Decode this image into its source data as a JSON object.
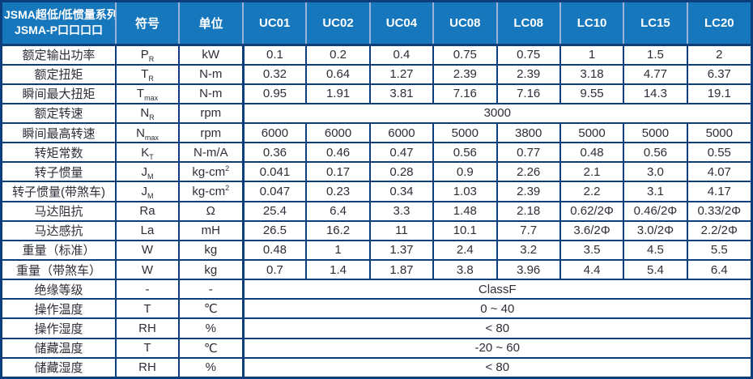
{
  "table": {
    "header": {
      "title_line1": "JSMA超低/低惯量系列",
      "title_line2": "JSMA-P口口口口",
      "symbol_col": "符号",
      "unit_col": "单位",
      "models": [
        "UC01",
        "UC02",
        "UC04",
        "UC08",
        "LC08",
        "LC10",
        "LC15",
        "LC20"
      ]
    },
    "rows": [
      {
        "label": "额定输出功率",
        "symbol": {
          "base": "P",
          "sub": "R"
        },
        "unit": {
          "base": "kW"
        },
        "values": [
          "0.1",
          "0.2",
          "0.4",
          "0.75",
          "0.75",
          "1",
          "1.5",
          "2"
        ]
      },
      {
        "label": "额定扭矩",
        "symbol": {
          "base": "T",
          "sub": "R"
        },
        "unit": {
          "base": "N-m"
        },
        "values": [
          "0.32",
          "0.64",
          "1.27",
          "2.39",
          "2.39",
          "3.18",
          "4.77",
          "6.37"
        ]
      },
      {
        "label": "瞬间最大扭矩",
        "symbol": {
          "base": "T",
          "sub": "max"
        },
        "unit": {
          "base": "N-m"
        },
        "values": [
          "0.95",
          "1.91",
          "3.81",
          "7.16",
          "7.16",
          "9.55",
          "14.3",
          "19.1"
        ]
      },
      {
        "label": "额定转速",
        "symbol": {
          "base": "N",
          "sub": "R"
        },
        "unit": {
          "base": "rpm"
        },
        "merged": "3000"
      },
      {
        "label": "瞬间最高转速",
        "symbol": {
          "base": "N",
          "sub": "max"
        },
        "unit": {
          "base": "rpm"
        },
        "values": [
          "6000",
          "6000",
          "6000",
          "5000",
          "3800",
          "5000",
          "5000",
          "5000"
        ]
      },
      {
        "label": "转矩常数",
        "symbol": {
          "base": "K",
          "sub": "T"
        },
        "unit": {
          "base": "N-m/A"
        },
        "values": [
          "0.36",
          "0.46",
          "0.47",
          "0.56",
          "0.77",
          "0.48",
          "0.56",
          "0.55"
        ]
      },
      {
        "label": "转子惯量",
        "symbol": {
          "base": "J",
          "sub": "M"
        },
        "unit": {
          "base": "kg-cm",
          "sup": "2"
        },
        "values": [
          "0.041",
          "0.17",
          "0.28",
          "0.9",
          "2.26",
          "2.1",
          "3.0",
          "4.07"
        ]
      },
      {
        "label": "转子惯量(带煞车)",
        "symbol": {
          "base": "J",
          "sub": "M"
        },
        "unit": {
          "base": "kg-cm",
          "sup": "2"
        },
        "values": [
          "0.047",
          "0.23",
          "0.34",
          "1.03",
          "2.39",
          "2.2",
          "3.1",
          "4.17"
        ]
      },
      {
        "label": "马达阻抗",
        "symbol": {
          "base": "Ra"
        },
        "unit": {
          "base": "Ω"
        },
        "values": [
          "25.4",
          "6.4",
          "3.3",
          "1.48",
          "2.18",
          "0.62/2Φ",
          "0.46/2Φ",
          "0.33/2Φ"
        ]
      },
      {
        "label": "马达感抗",
        "symbol": {
          "base": "La"
        },
        "unit": {
          "base": "mH"
        },
        "values": [
          "26.5",
          "16.2",
          "11",
          "10.1",
          "7.7",
          "3.6/2Φ",
          "3.0/2Φ",
          "2.2/2Φ"
        ]
      },
      {
        "label": "重量（标准）",
        "symbol": {
          "base": "W"
        },
        "unit": {
          "base": "kg"
        },
        "values": [
          "0.48",
          "1",
          "1.37",
          "2.4",
          "3.2",
          "3.5",
          "4.5",
          "5.5"
        ]
      },
      {
        "label": "重量（带煞车）",
        "symbol": {
          "base": "W"
        },
        "unit": {
          "base": "kg"
        },
        "values": [
          "0.7",
          "1.4",
          "1.87",
          "3.8",
          "3.96",
          "4.4",
          "5.4",
          "6.4"
        ]
      },
      {
        "label": "绝缘等级",
        "symbol": {
          "base": "-"
        },
        "unit": {
          "base": "-"
        },
        "merged": "ClassF"
      },
      {
        "label": "操作温度",
        "symbol": {
          "base": "T"
        },
        "unit": {
          "base": "℃"
        },
        "merged": "0 ~ 40"
      },
      {
        "label": "操作湿度",
        "symbol": {
          "base": "RH"
        },
        "unit": {
          "base": "%"
        },
        "merged": "< 80"
      },
      {
        "label": "储藏温度",
        "symbol": {
          "base": "T"
        },
        "unit": {
          "base": "℃"
        },
        "merged": "-20 ~ 60"
      },
      {
        "label": "储藏湿度",
        "symbol": {
          "base": "RH"
        },
        "unit": {
          "base": "%"
        },
        "merged": "< 80"
      }
    ],
    "colors": {
      "header_bg": "#1777bd",
      "header_text": "#ffffff",
      "header_divider": "#9bb3d6",
      "border": "#0c3e7c",
      "body_text": "#2e2e38",
      "body_bg": "#ffffff"
    }
  }
}
